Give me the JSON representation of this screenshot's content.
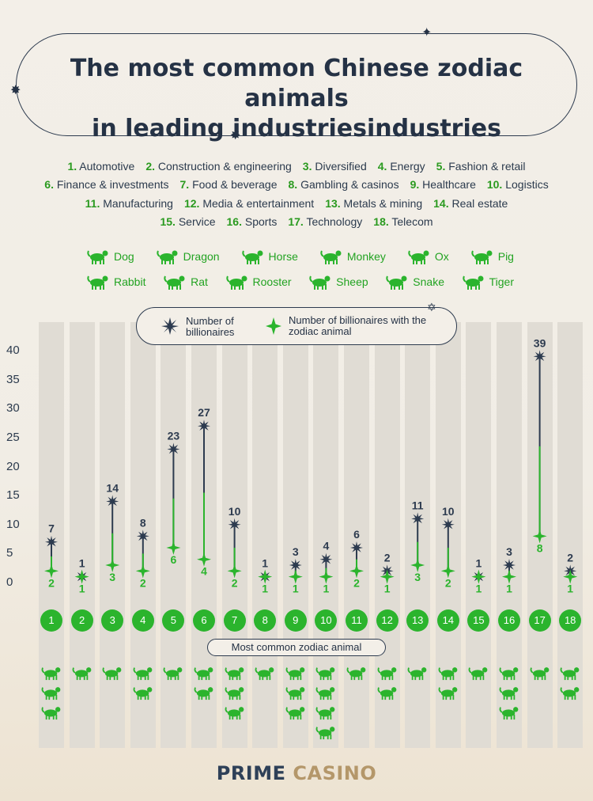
{
  "title": "The most common Chinese zodiac animals in leading industriesindustries",
  "industries": [
    {
      "n": "1.",
      "name": "Automotive"
    },
    {
      "n": "2.",
      "name": "Construction & engineering"
    },
    {
      "n": "3.",
      "name": "Diversified"
    },
    {
      "n": "4.",
      "name": "Energy"
    },
    {
      "n": "5.",
      "name": "Fashion & retail"
    },
    {
      "n": "6.",
      "name": "Finance & investments"
    },
    {
      "n": "7.",
      "name": "Food & beverage"
    },
    {
      "n": "8.",
      "name": "Gambling & casinos"
    },
    {
      "n": "9.",
      "name": "Healthcare"
    },
    {
      "n": "10.",
      "name": "Logistics"
    },
    {
      "n": "11.",
      "name": "Manufacturing"
    },
    {
      "n": "12.",
      "name": "Media & entertainment"
    },
    {
      "n": "13.",
      "name": "Metals & mining"
    },
    {
      "n": "14.",
      "name": "Real estate"
    },
    {
      "n": "15.",
      "name": "Service"
    },
    {
      "n": "16.",
      "name": "Sports"
    },
    {
      "n": "17.",
      "name": "Technology"
    },
    {
      "n": "18.",
      "name": "Telecom"
    }
  ],
  "animals": [
    "Dog",
    "Dragon",
    "Horse",
    "Monkey",
    "Ox",
    "Pig",
    "Rabbit",
    "Rat",
    "Rooster",
    "Sheep",
    "Snake",
    "Tiger"
  ],
  "legend": {
    "billionaires": "Number of billionaires",
    "zodiac": "Number of billionaires with the zodiac animal"
  },
  "most_common_label": "Most common zodiac animal",
  "brand": {
    "part1": "PRIME",
    "part2": "CASINO"
  },
  "colors": {
    "dark": "#2d3b4f",
    "green": "#2bb42d",
    "band": "#e0dcd4",
    "gold": "#b4976a"
  },
  "chart_data": {
    "type": "lollipop",
    "categories": [
      "1",
      "2",
      "3",
      "4",
      "5",
      "6",
      "7",
      "8",
      "9",
      "10",
      "11",
      "12",
      "13",
      "14",
      "15",
      "16",
      "17",
      "18"
    ],
    "series": [
      {
        "name": "Number of billionaires",
        "values": [
          7,
          1,
          14,
          8,
          23,
          27,
          10,
          1,
          3,
          4,
          6,
          2,
          11,
          10,
          1,
          3,
          39,
          2
        ]
      },
      {
        "name": "Number of billionaires with the zodiac animal",
        "values": [
          2,
          1,
          3,
          2,
          6,
          4,
          2,
          1,
          1,
          1,
          2,
          1,
          3,
          2,
          1,
          1,
          8,
          1
        ]
      }
    ],
    "yticks": [
      0,
      5,
      10,
      15,
      20,
      25,
      30,
      35,
      40
    ],
    "ylim": [
      0,
      40
    ],
    "most_common_animals": [
      [
        "Horse",
        "Monkey",
        "Tiger"
      ],
      [
        "Ox"
      ],
      [
        "Tiger"
      ],
      [
        "Dragon",
        "Sheep"
      ],
      [
        "Rat"
      ],
      [
        "Dragon",
        "Monkey"
      ],
      [
        "Horse",
        "Monkey",
        "Rabbit"
      ],
      [
        "Rooster"
      ],
      [
        "Sheep",
        "Snake",
        "Tiger"
      ],
      [
        "Dragon",
        "Monkey",
        "Ox",
        "Rooster"
      ],
      [
        "Ox"
      ],
      [
        "Rooster",
        "Sheep"
      ],
      [
        "Snake"
      ],
      [
        "Dragon",
        "Sheep"
      ],
      [
        "Dog"
      ],
      [
        "Horse",
        "Pig",
        "Snake"
      ],
      [
        "Sheep"
      ],
      [
        "Rabbit",
        "Rooster"
      ]
    ]
  }
}
